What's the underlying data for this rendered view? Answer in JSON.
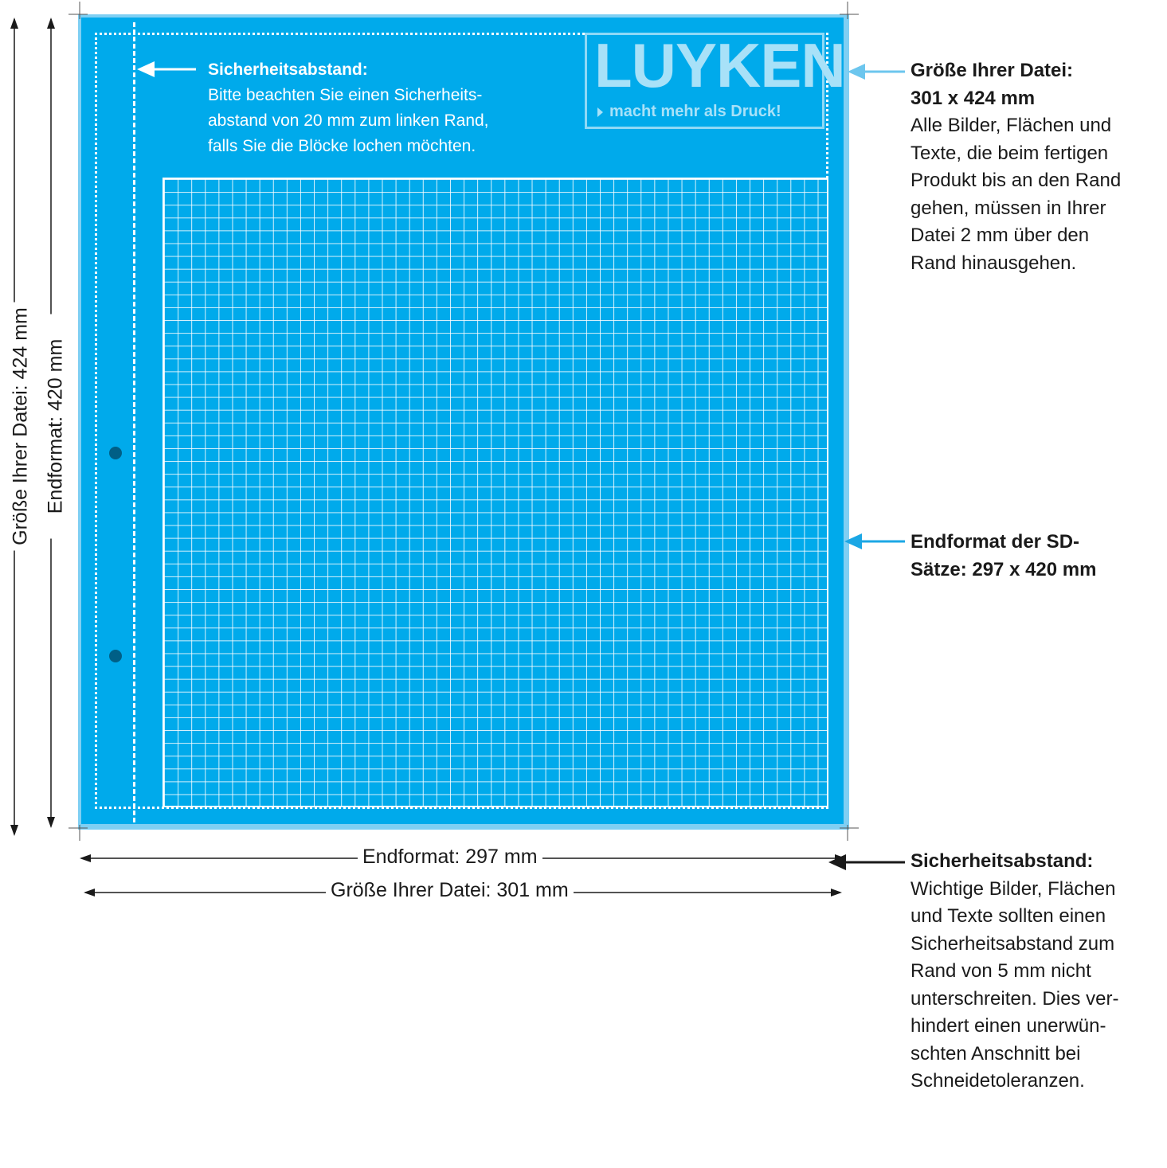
{
  "logo": {
    "word": "LUYKEN",
    "tagline": "macht mehr als Druck!"
  },
  "inner_note": {
    "title": "Sicherheitsabstand:",
    "body": "Bitte beachten Sie einen Sicherheits-abstand von 20 mm zum linken Rand, falls Sie die Blöcke lochen möchten.",
    "lines": [
      "Bitte beachten Sie einen Sicherheits-",
      "abstand von 20 mm zum linken Rand,",
      "falls Sie die Blöcke lochen möchten."
    ]
  },
  "notes": {
    "file_size": {
      "title": "Größe Ihrer Datei:",
      "subtitle": "301 x 424 mm",
      "body_lines": [
        "Alle Bilder, Flächen und",
        "Texte, die beim fertigen",
        "Produkt bis an den Rand",
        "gehen, müssen in Ihrer",
        "Datei 2 mm über den",
        "Rand hinausgehen."
      ]
    },
    "final_format": {
      "title_lines": [
        "Endformat der SD-",
        "Sätze: 297 x 420 mm"
      ]
    },
    "safety": {
      "title": "Sicherheitsabstand:",
      "body_lines": [
        "Wichtige Bilder, Flächen",
        "und Texte sollten einen",
        "Sicherheitsabstand zum",
        "Rand von 5 mm nicht",
        "unterschreiten. Dies ver-",
        "hindert einen unerwün-",
        "schten Anschnitt bei",
        "Schneidetoleranzen."
      ]
    }
  },
  "dimensions": {
    "width_final": "Endformat: 297 mm",
    "width_file": "Größe Ihrer Datei: 301 mm",
    "height_final": "Endformat: 420 mm",
    "height_file": "Größe Ihrer Datei: 424 mm"
  },
  "colors": {
    "sheet": "#00aaeb",
    "bleed": "#7fcff3",
    "hole": "#005f86",
    "arrow_light": "#6cc6ee",
    "arrow_mid": "#1ba7e5",
    "arrow_dark": "#1a1a1a"
  }
}
